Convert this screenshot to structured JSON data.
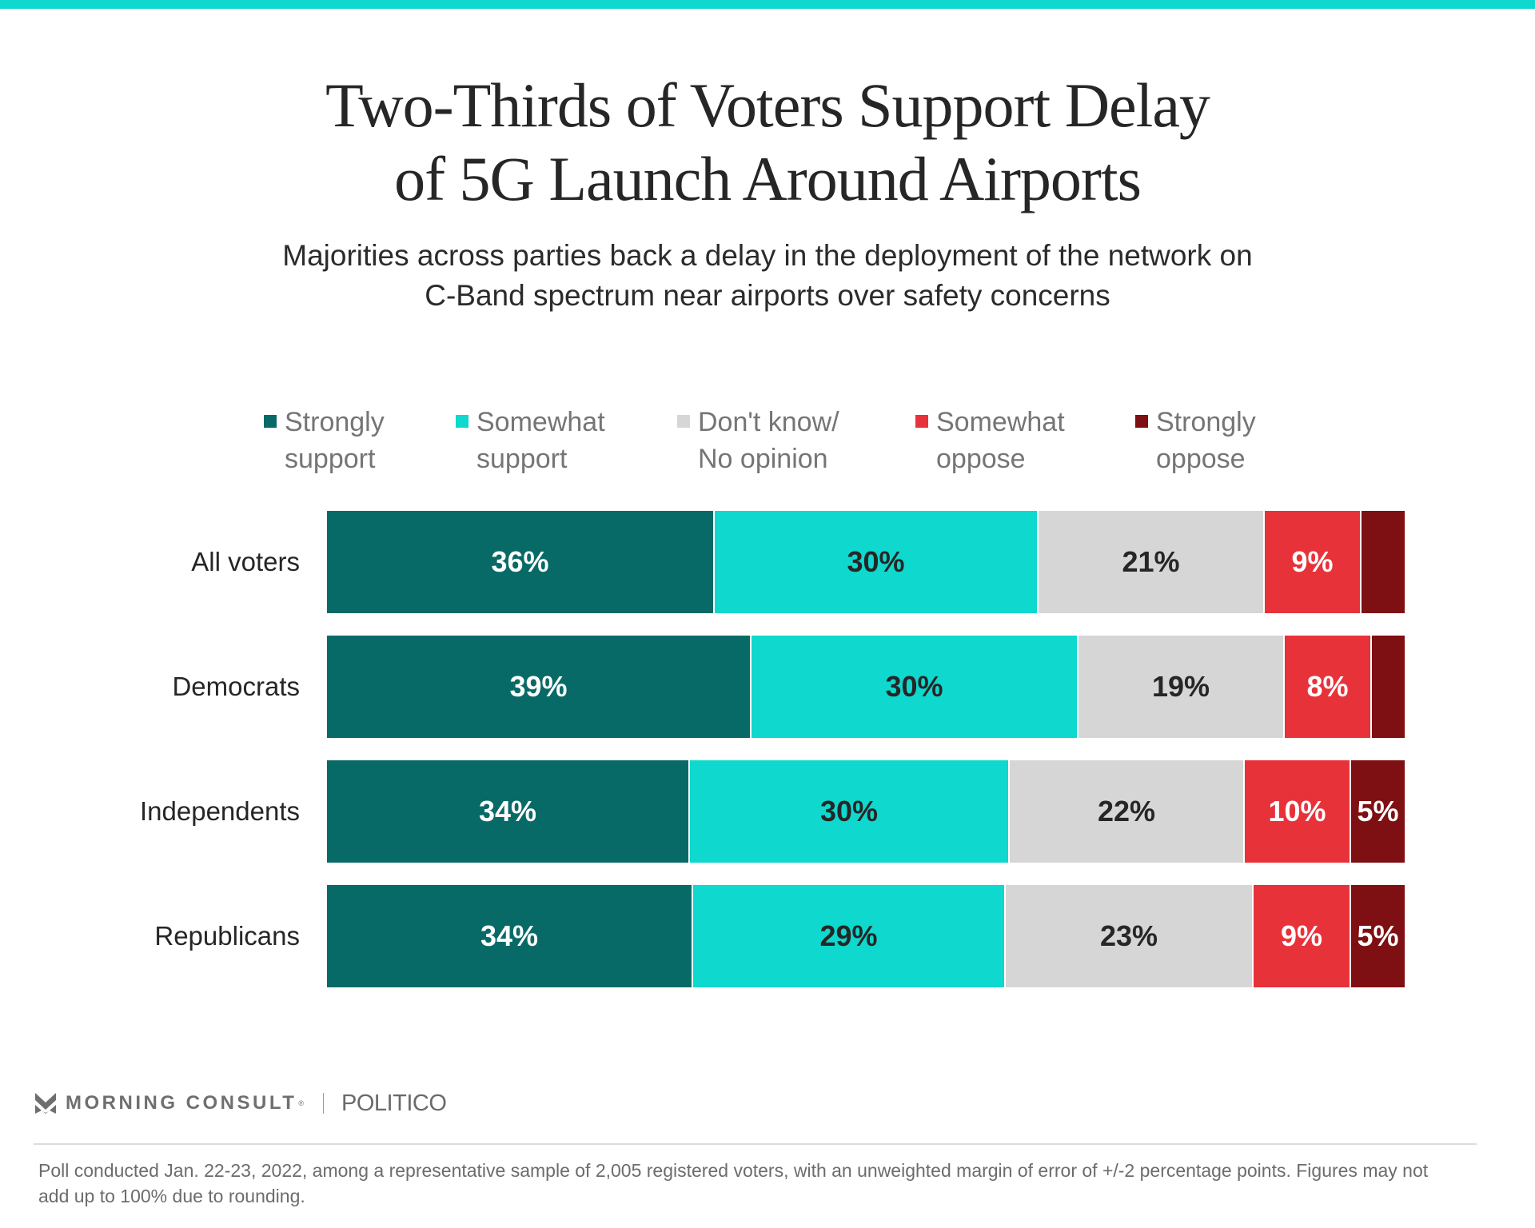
{
  "header": {
    "title_lines": [
      "Two-Thirds of Voters Support Delay",
      "of 5G Launch Around Airports"
    ],
    "subtitle_lines": [
      "Majorities across parties back a delay in the deployment of the network on",
      "C-Band spectrum near airports over safety concerns"
    ]
  },
  "colors": {
    "accent_stripe": "#0FD8CE",
    "strongly_support": "#086A67",
    "somewhat_support": "#0FD8CE",
    "dont_know": "#D6D6D6",
    "somewhat_oppose": "#E8323A",
    "strongly_oppose": "#7E0F12"
  },
  "chart_data": {
    "type": "bar",
    "orientation": "horizontal",
    "stacked": true,
    "title": "Two-Thirds of Voters Support Delay of 5G Launch Around Airports",
    "subtitle": "Majorities across parties back a delay in the deployment of the network on C-Band spectrum near airports over safety concerns",
    "xlabel": "",
    "ylabel": "",
    "xlim": [
      0,
      100
    ],
    "grid": false,
    "legend_position": "top",
    "categories": [
      "All voters",
      "Democrats",
      "Independents",
      "Republicans"
    ],
    "series": [
      {
        "name": "Strongly support",
        "legend_lines": [
          "Strongly",
          "support"
        ],
        "color": "#086A67",
        "label_color": "#ffffff",
        "values": [
          36,
          39,
          34,
          34
        ],
        "labels": [
          "36%",
          "39%",
          "34%",
          "34%"
        ]
      },
      {
        "name": "Somewhat support",
        "legend_lines": [
          "Somewhat",
          "support"
        ],
        "color": "#0FD8CE",
        "label_color": "#262626",
        "values": [
          30,
          30,
          30,
          29
        ],
        "labels": [
          "30%",
          "30%",
          "30%",
          "29%"
        ]
      },
      {
        "name": "Don't know/No opinion",
        "legend_lines": [
          "Don't know/",
          "No opinion"
        ],
        "color": "#D6D6D6",
        "label_color": "#262626",
        "values": [
          21,
          19,
          22,
          23
        ],
        "labels": [
          "21%",
          "19%",
          "22%",
          "23%"
        ]
      },
      {
        "name": "Somewhat oppose",
        "legend_lines": [
          "Somewhat",
          "oppose"
        ],
        "color": "#E8323A",
        "label_color": "#ffffff",
        "values": [
          9,
          8,
          10,
          9
        ],
        "labels": [
          "9%",
          "8%",
          "10%",
          "9%"
        ]
      },
      {
        "name": "Strongly oppose",
        "legend_lines": [
          "Strongly",
          "oppose"
        ],
        "color": "#7E0F12",
        "label_color": "#ffffff",
        "values": [
          4,
          3,
          5,
          5
        ],
        "labels": [
          "",
          "",
          "5%",
          "5%"
        ]
      }
    ]
  },
  "footer": {
    "brand_primary": "MORNING CONSULT",
    "brand_reg": "®",
    "brand_partner": "POLITICO",
    "icon": "morning-consult-logo-icon",
    "footnote": "Poll conducted Jan. 22-23, 2022, among a representative sample of 2,005 registered voters, with an unweighted margin of error of +/-2 percentage points. Figures may not add up to 100% due to rounding."
  }
}
